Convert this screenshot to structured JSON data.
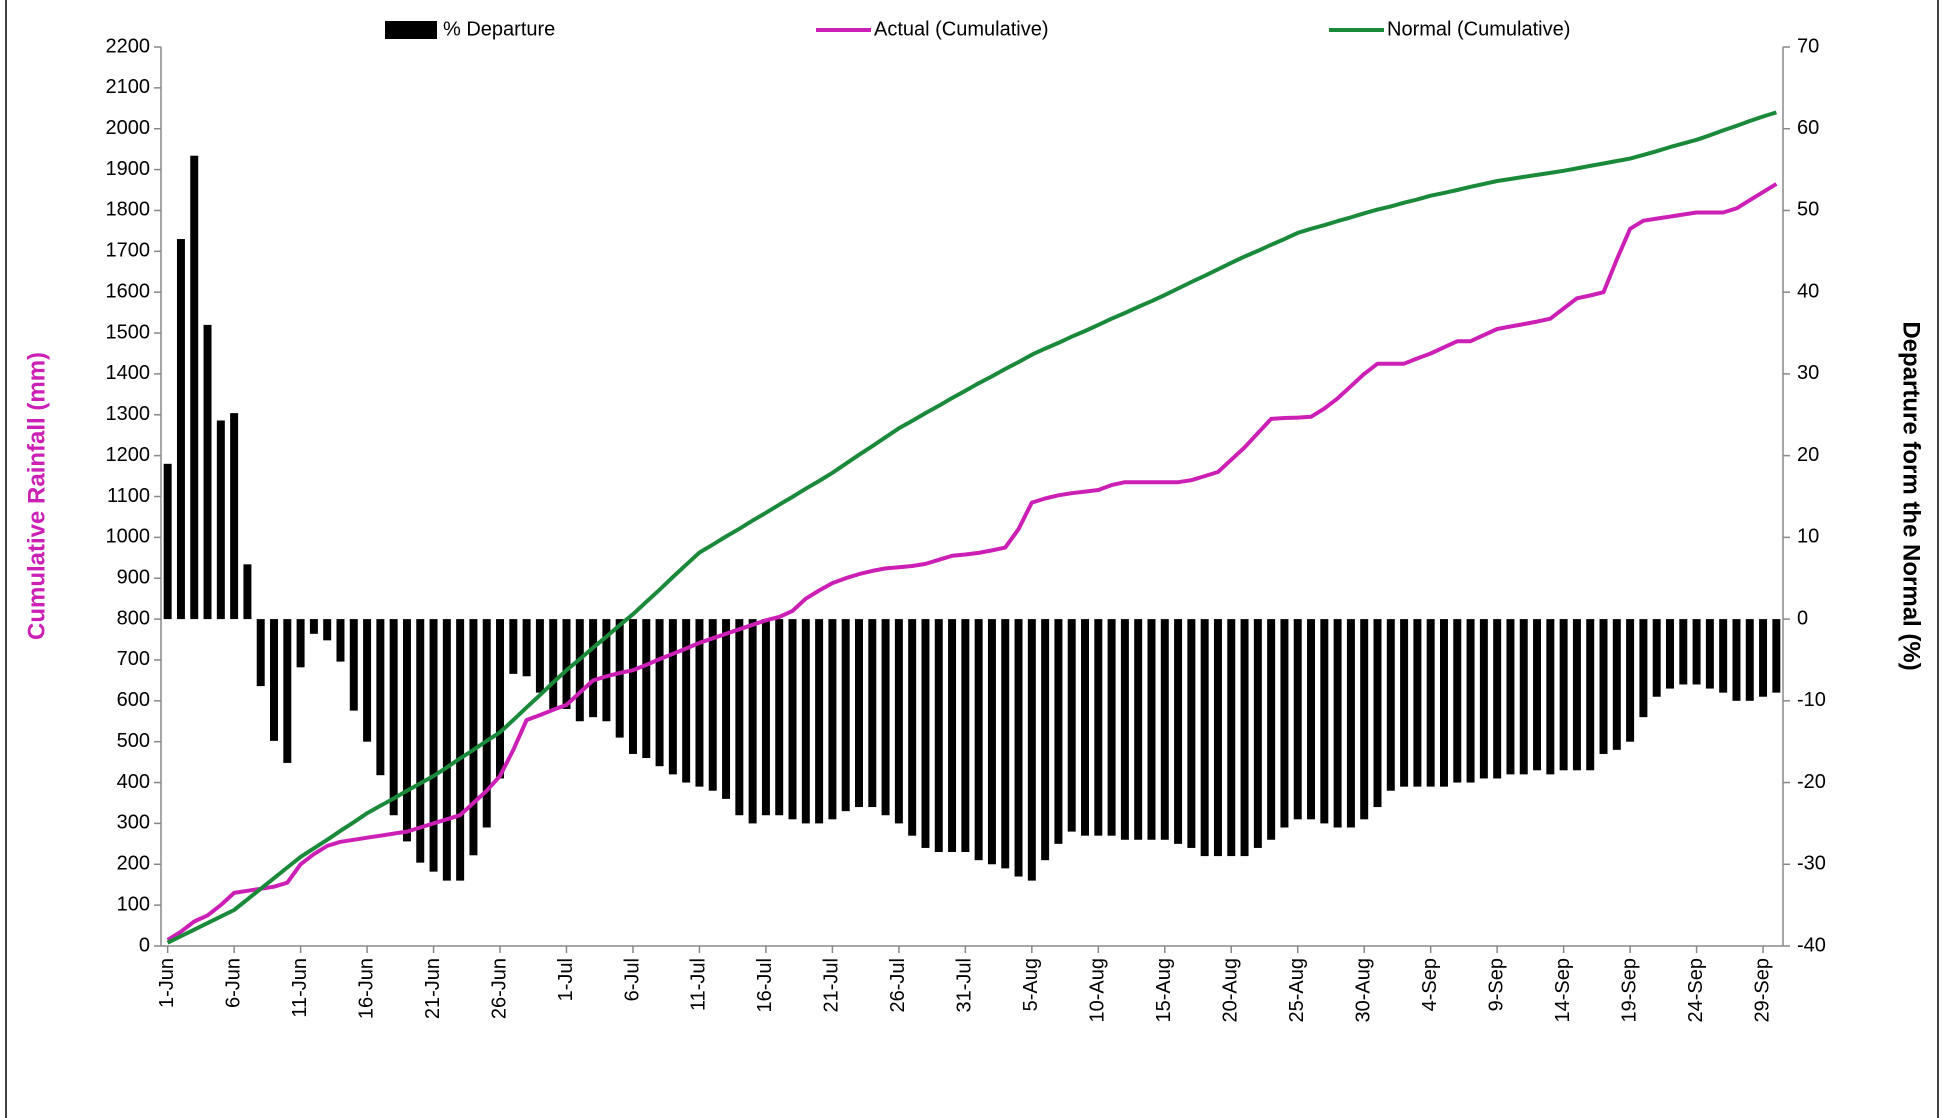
{
  "chart_data": {
    "type": "bar-line",
    "y_label": "Cumulative Rainfall (mm)",
    "y2_label": "Departure form the Normal (%)",
    "legend": "top",
    "categories": [
      "1-Jun",
      null,
      null,
      null,
      null,
      "6-Jun",
      null,
      null,
      null,
      null,
      "11-Jun",
      null,
      null,
      null,
      null,
      "16-Jun",
      null,
      null,
      null,
      null,
      "21-Jun",
      null,
      null,
      null,
      null,
      "26-Jun",
      null,
      null,
      null,
      null,
      "1-Jul",
      null,
      null,
      null,
      null,
      "6-Jul",
      null,
      null,
      null,
      null,
      "11-Jul",
      null,
      null,
      null,
      null,
      "16-Jul",
      null,
      null,
      null,
      null,
      "21-Jul",
      null,
      null,
      null,
      null,
      "26-Jul",
      null,
      null,
      null,
      null,
      "31-Jul",
      null,
      null,
      null,
      null,
      "5-Aug",
      null,
      null,
      null,
      null,
      "10-Aug",
      null,
      null,
      null,
      null,
      "15-Aug",
      null,
      null,
      null,
      null,
      "20-Aug",
      null,
      null,
      null,
      null,
      "25-Aug",
      null,
      null,
      null,
      null,
      "30-Aug",
      null,
      null,
      null,
      null,
      "4-Sep",
      null,
      null,
      null,
      null,
      "9-Sep",
      null,
      null,
      null,
      null,
      "14-Sep",
      null,
      null,
      null,
      null,
      "19-Sep",
      null,
      null,
      null,
      null,
      "24-Sep",
      null,
      null,
      null,
      null,
      "29-Sep",
      null
    ],
    "series": [
      {
        "name": "% Departure",
        "type": "bar",
        "axis": "y2",
        "color": "#000000",
        "values": [
          19,
          46.5,
          56.7,
          36,
          24.3,
          25.2,
          6.7,
          -8.2,
          -14.9,
          -17.6,
          -5.9,
          -1.8,
          -2.6,
          -5.2,
          -11.2,
          -15,
          -19.1,
          -24,
          -27.2,
          -29.8,
          -30.9,
          -32,
          -32,
          -28.9,
          -25.5,
          -19.5,
          -6.7,
          -7,
          -9,
          -11,
          -11,
          -12.5,
          -12,
          -12.5,
          -14.5,
          -16.5,
          -17,
          -18,
          -19,
          -20,
          -20.5,
          -21,
          -22,
          -24,
          -25,
          -24,
          -24,
          -24.5,
          -25,
          -25,
          -24.5,
          -23.5,
          -23,
          -23,
          -24,
          -25,
          -26.5,
          -28,
          -28.5,
          -28.5,
          -28.5,
          -29.5,
          -30,
          -30.5,
          -31.5,
          -32,
          -29.5,
          -27.5,
          -26,
          -26.5,
          -26.5,
          -26.5,
          -27,
          -27,
          -27,
          -27,
          -27.5,
          -28,
          -29,
          -29,
          -29,
          -29,
          -28,
          -27,
          -25.5,
          -24.5,
          -24.5,
          -25,
          -25.5,
          -25.5,
          -24.5,
          -23,
          -21,
          -20.5,
          -20.5,
          -20.5,
          -20.5,
          -20,
          -20,
          -19.5,
          -19.5,
          -19,
          -19,
          -18.5,
          -19,
          -18.5,
          -18.5,
          -18.5,
          -16.5,
          -16,
          -15,
          -12,
          -9.5,
          -8.5,
          -8,
          -8,
          -8.5,
          -9,
          -10,
          -10,
          -9.5,
          -9
        ]
      },
      {
        "name": "Actual (Cumulative)",
        "type": "line",
        "color": "#cc1fb5",
        "values": [
          15,
          35,
          60,
          75,
          100,
          130,
          135,
          140,
          145,
          155,
          200,
          225,
          245,
          255,
          260,
          265,
          270,
          275,
          280,
          290,
          300,
          310,
          320,
          350,
          380,
          416,
          480,
          553,
          565,
          578,
          590,
          620,
          650,
          660,
          668,
          675,
          688,
          702,
          715,
          728,
          742,
          753,
          764,
          775,
          786,
          797,
          805,
          820,
          850,
          870,
          888,
          900,
          910,
          918,
          924,
          927,
          930,
          935,
          945,
          955,
          958,
          962,
          968,
          975,
          1020,
          1085,
          1095,
          1103,
          1108,
          1112,
          1116,
          1128,
          1135,
          1135,
          1135,
          1135,
          1135,
          1140,
          1150,
          1160,
          1190,
          1220,
          1255,
          1290,
          1292,
          1293,
          1295,
          1315,
          1340,
          1370,
          1400,
          1425,
          1425,
          1425,
          1438,
          1450,
          1465,
          1480,
          1480,
          1495,
          1510,
          1516,
          1522,
          1528,
          1535,
          1560,
          1585,
          1592,
          1600,
          1680,
          1755,
          1775,
          1780,
          1785,
          1790,
          1795,
          1795,
          1795,
          1805,
          1825,
          1845,
          1865
        ]
      },
      {
        "name": "Normal (Cumulative)",
        "type": "line",
        "color": "#1a8a3a",
        "values": [
          8,
          24,
          40,
          56,
          72,
          88,
          114,
          140,
          166,
          192,
          218,
          239,
          260,
          282,
          303,
          325,
          343,
          361,
          380,
          398,
          416,
          437,
          459,
          480,
          502,
          523,
          553,
          584,
          614,
          645,
          675,
          702,
          730,
          757,
          785,
          812,
          842,
          872,
          903,
          933,
          963,
          982,
          1002,
          1021,
          1041,
          1060,
          1080,
          1099,
          1119,
          1138,
          1158,
          1180,
          1202,
          1223,
          1245,
          1267,
          1285,
          1304,
          1322,
          1341,
          1359,
          1377,
          1394,
          1412,
          1429,
          1447,
          1462,
          1476,
          1491,
          1505,
          1520,
          1535,
          1549,
          1564,
          1578,
          1593,
          1609,
          1625,
          1640,
          1656,
          1672,
          1687,
          1701,
          1716,
          1730,
          1745,
          1755,
          1764,
          1774,
          1783,
          1793,
          1802,
          1810,
          1819,
          1827,
          1836,
          1843,
          1850,
          1858,
          1865,
          1872,
          1877,
          1882,
          1887,
          1892,
          1897,
          1903,
          1909,
          1915,
          1921,
          1927,
          1936,
          1945,
          1955,
          1964,
          1973,
          1984,
          1996,
          2007,
          2019,
          2030,
          2040
        ]
      }
    ],
    "ylim": [
      0,
      2200
    ],
    "yticks": [
      0,
      100,
      200,
      300,
      400,
      500,
      600,
      700,
      800,
      900,
      1000,
      1100,
      1200,
      1300,
      1400,
      1500,
      1600,
      1700,
      1800,
      1900,
      2000,
      2100,
      2200
    ],
    "y2lim": [
      -40,
      70
    ],
    "y2ticks": [
      -40,
      -30,
      -20,
      -10,
      0,
      10,
      20,
      30,
      40,
      50,
      60,
      70
    ]
  }
}
